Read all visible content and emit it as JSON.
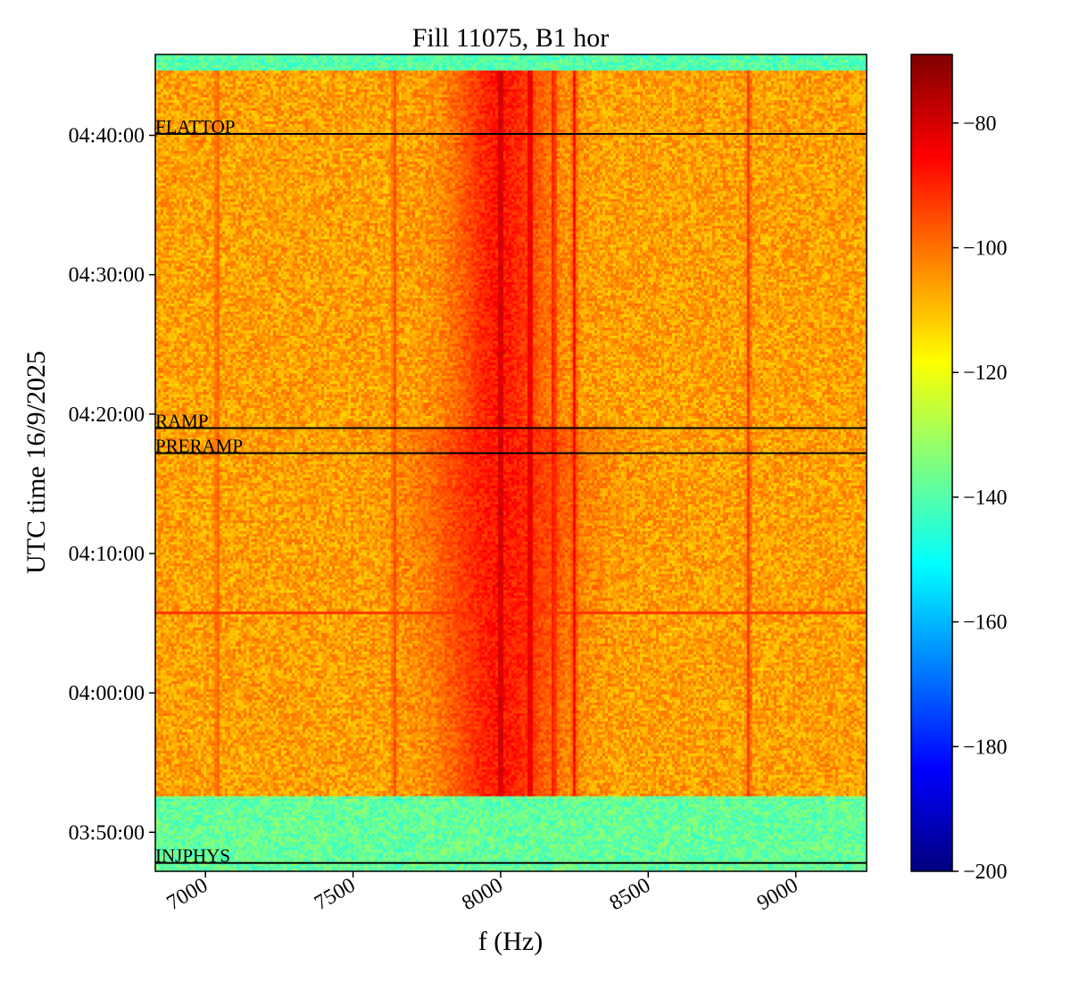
{
  "chart_data": {
    "type": "heatmap",
    "title": "Fill 11075, B1 hor",
    "xlabel": "f (Hz)",
    "ylabel": "UTC time 16/9/2025",
    "colormap": "jet",
    "xlim": [
      6830,
      9240
    ],
    "x_ticks": [
      7000,
      7500,
      8000,
      8500,
      9000
    ],
    "x_tick_labels": [
      "7000",
      "7500",
      "8000",
      "8500",
      "9000"
    ],
    "ylim_minutes": [
      227.2,
      285.8
    ],
    "y_ticks_minutes": [
      230,
      240,
      250,
      260,
      270,
      280
    ],
    "y_tick_labels": [
      "03:50:00",
      "04:00:00",
      "04:10:00",
      "04:20:00",
      "04:30:00",
      "04:40:00"
    ],
    "colorbar": {
      "range": [
        -200,
        -69
      ],
      "ticks": [
        -80,
        -100,
        -120,
        -140,
        -160,
        -180,
        -200
      ],
      "tick_labels": [
        "−80",
        "−100",
        "−120",
        "−140",
        "−160",
        "−180",
        "−200"
      ]
    },
    "background_level": -106,
    "events": [
      {
        "label": "FLATTOP",
        "time_min": 280.1
      },
      {
        "label": "RAMP",
        "time_min": 259.0
      },
      {
        "label": "PRERAMP",
        "time_min": 257.2
      },
      {
        "label": "INJPHYS",
        "time_min": 227.8
      }
    ],
    "features": {
      "low_level_bands": [
        {
          "t_start": 227.2,
          "t_end": 232.5,
          "level": -138
        },
        {
          "t_start": 284.6,
          "t_end": 285.8,
          "level": -140
        }
      ],
      "broadband_hump": {
        "f_center": 8000,
        "f_width": 170,
        "level": -88
      },
      "lines": [
        {
          "f": 8000,
          "level": -76
        },
        {
          "f": 8100,
          "level": -78
        },
        {
          "f": 8180,
          "level": -86
        },
        {
          "f": 8250,
          "level": -86
        },
        {
          "f": 8840,
          "level": -92
        },
        {
          "f": 7640,
          "level": -94
        },
        {
          "f": 7040,
          "level": -96
        }
      ],
      "horizontal_line": {
        "time_min": 245.7,
        "level": -92
      }
    }
  }
}
